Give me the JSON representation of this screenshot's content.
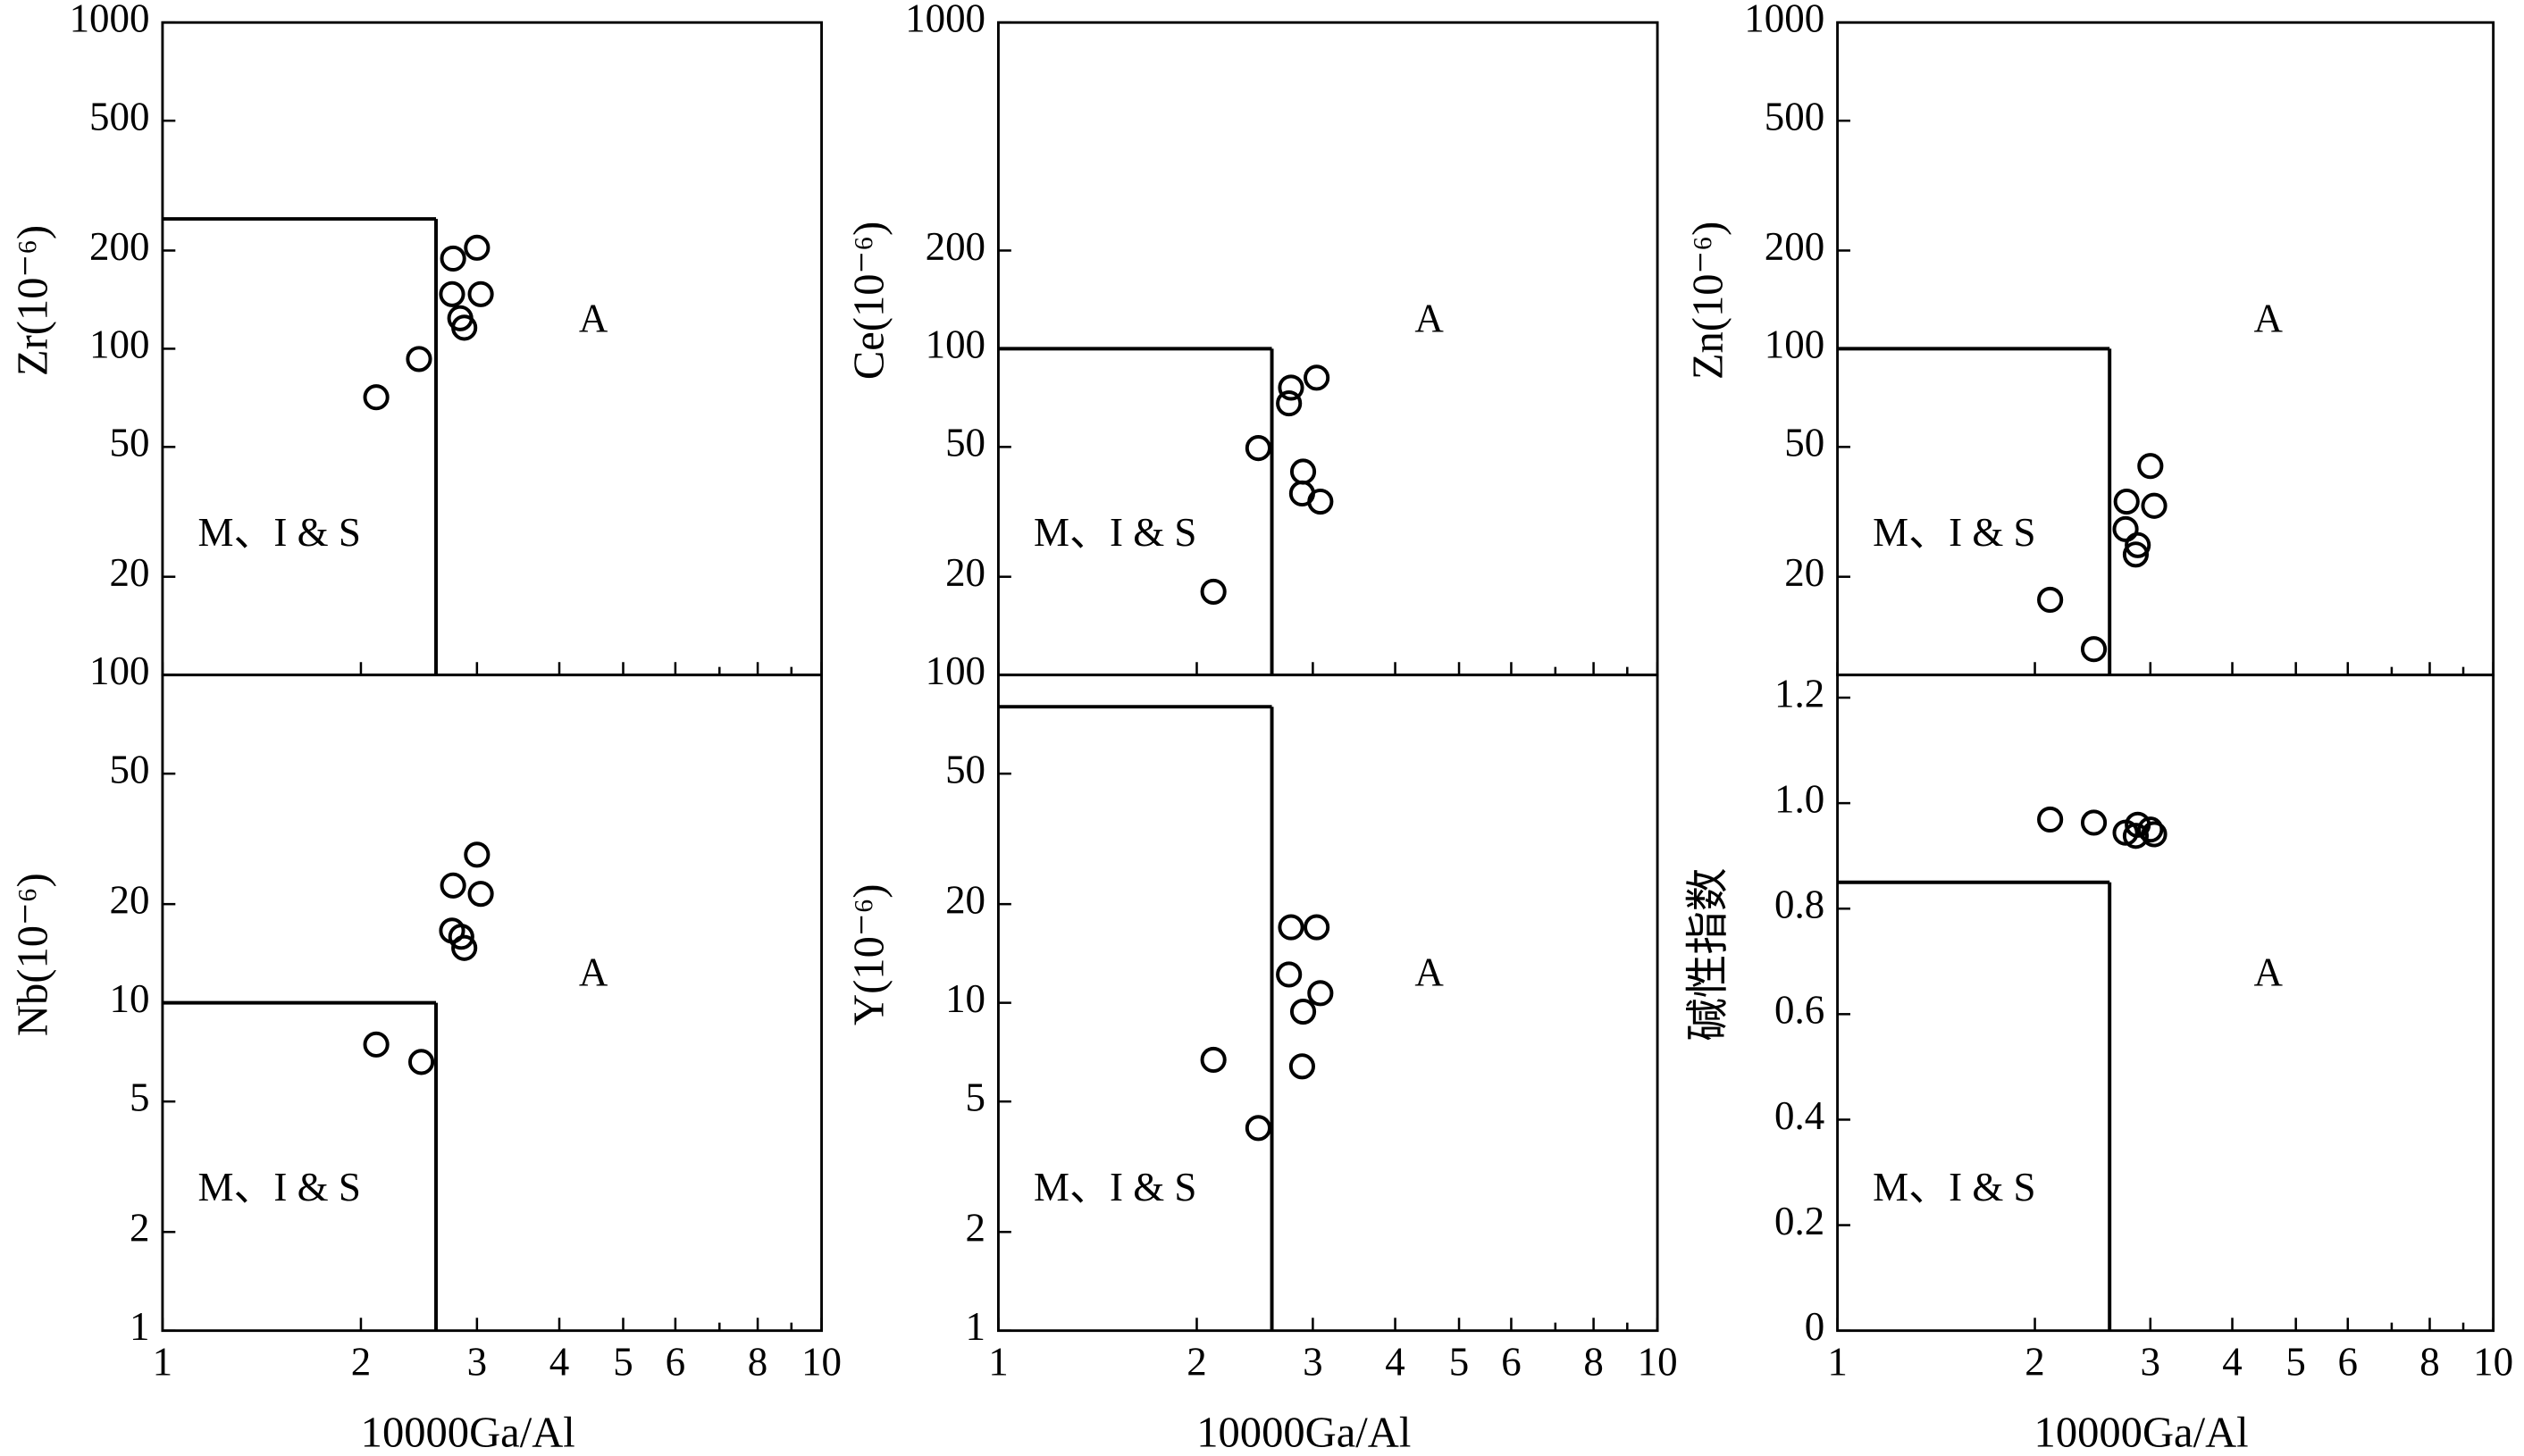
{
  "chart_data": [
    {
      "type": "scatter",
      "ylabel": "Zr(10⁻⁶)",
      "xlog": true,
      "ylog": true,
      "show_xtick_labels": false,
      "xlim": [
        1,
        10
      ],
      "ylim": [
        10,
        1000
      ],
      "xticks": [
        1,
        2,
        3,
        4,
        5,
        6,
        8,
        10
      ],
      "xminor": [
        7,
        9
      ],
      "yticks": [
        20,
        50,
        100,
        200,
        500,
        1000
      ],
      "boundary": {
        "x": 2.6,
        "y": 250
      },
      "field_labels": [
        "M、I & S",
        "A"
      ],
      "x": [
        2.11,
        2.45,
        2.76,
        3.0,
        2.75,
        3.04,
        2.83,
        2.87
      ],
      "y": [
        71,
        93,
        189,
        204,
        147,
        147,
        124,
        116
      ]
    },
    {
      "type": "scatter",
      "ylabel": "Ce(10⁻⁶)",
      "xlog": true,
      "ylog": true,
      "show_xtick_labels": false,
      "xlim": [
        1,
        10
      ],
      "ylim": [
        10,
        1000
      ],
      "xticks": [
        1,
        2,
        3,
        4,
        5,
        6,
        8,
        10
      ],
      "xminor": [
        7,
        9
      ],
      "yticks": [
        20,
        50,
        100,
        200,
        1000
      ],
      "boundary": {
        "x": 2.6,
        "y": 100
      },
      "field_labels": [
        "M、I & S",
        "A"
      ],
      "x": [
        2.12,
        2.48,
        2.78,
        2.76,
        3.04,
        2.9,
        2.89,
        3.08
      ],
      "y": [
        18,
        49.6,
        76,
        68,
        81.5,
        42,
        36,
        34
      ]
    },
    {
      "type": "scatter",
      "ylabel": "Zn(10⁻⁶)",
      "xlog": true,
      "ylog": true,
      "show_xtick_labels": false,
      "xlim": [
        1,
        10
      ],
      "ylim": [
        10,
        1000
      ],
      "xticks": [
        1,
        2,
        3,
        4,
        5,
        6,
        8,
        10
      ],
      "xminor": [
        7,
        9
      ],
      "yticks": [
        20,
        50,
        100,
        200,
        500,
        1000
      ],
      "boundary": {
        "x": 2.6,
        "y": 100
      },
      "field_labels": [
        "M、I & S",
        "A"
      ],
      "x": [
        2.11,
        2.46,
        2.76,
        2.75,
        2.87,
        2.85,
        3.0,
        3.04
      ],
      "y": [
        17,
        12,
        34,
        28,
        25,
        23.4,
        43.7,
        33
      ]
    },
    {
      "type": "scatter",
      "ylabel": "Nb(10⁻⁶)",
      "xlabel": "10000Ga/Al",
      "xlog": true,
      "ylog": true,
      "show_xtick_labels": true,
      "xlim": [
        1,
        10
      ],
      "ylim": [
        1,
        100
      ],
      "xticks": [
        1,
        2,
        3,
        4,
        5,
        6,
        8,
        10
      ],
      "xminor": [
        7,
        9
      ],
      "yticks": [
        1,
        2,
        5,
        10,
        20,
        50,
        100
      ],
      "boundary": {
        "x": 2.6,
        "y": 10
      },
      "field_labels": [
        "M、I & S",
        "A"
      ],
      "x": [
        2.11,
        2.47,
        2.76,
        3.0,
        3.04,
        2.75,
        2.84,
        2.87
      ],
      "y": [
        7.46,
        6.6,
        22.8,
        28.3,
        21.5,
        16.6,
        15.9,
        14.7
      ]
    },
    {
      "type": "scatter",
      "ylabel": "Y(10⁻⁶)",
      "xlabel": "10000Ga/Al",
      "xlog": true,
      "ylog": true,
      "show_xtick_labels": true,
      "xlim": [
        1,
        10
      ],
      "ylim": [
        1,
        100
      ],
      "xticks": [
        1,
        2,
        3,
        4,
        5,
        6,
        8,
        10
      ],
      "xminor": [
        7,
        9
      ],
      "yticks": [
        1,
        2,
        5,
        10,
        20,
        50,
        100
      ],
      "boundary": {
        "x": 2.6,
        "y": 80
      },
      "field_labels": [
        "M、I & S",
        "A"
      ],
      "x": [
        2.12,
        2.48,
        2.78,
        3.04,
        2.76,
        3.08,
        2.9,
        2.89
      ],
      "y": [
        6.7,
        4.15,
        17,
        17,
        12.2,
        10.7,
        9.4,
        6.4
      ]
    },
    {
      "type": "scatter",
      "ylabel": "碱性指数",
      "xlabel": "10000Ga/Al",
      "xlog": true,
      "ylog": false,
      "show_xtick_labels": true,
      "xlim": [
        1,
        10
      ],
      "ylim": [
        0,
        1.243
      ],
      "xticks": [
        1,
        2,
        3,
        4,
        5,
        6,
        8,
        10
      ],
      "xminor": [
        7,
        9
      ],
      "yticks": [
        0,
        0.2,
        0.4,
        0.6,
        0.8,
        {
          "value": 1,
          "label": "1.0"
        },
        1.2
      ],
      "boundary": {
        "x": 2.6,
        "y": 0.85
      },
      "field_labels": [
        "M、I & S",
        "A"
      ],
      "x": [
        2.11,
        2.46,
        2.75,
        2.87,
        2.85,
        3.0,
        3.04
      ],
      "y": [
        0.969,
        0.963,
        0.944,
        0.959,
        0.938,
        0.95,
        0.941
      ]
    }
  ]
}
